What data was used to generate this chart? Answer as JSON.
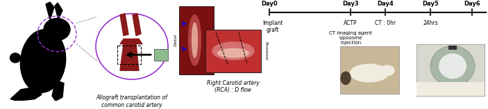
{
  "bg_color": "#ffffff",
  "timeline": {
    "days": [
      "Day0",
      "Day3",
      "Day4",
      "Day5",
      "Day6"
    ],
    "label_implant": "Implant\ngraft",
    "label_actp": "ACTP",
    "label_ct": "CT : 0hr",
    "label_24hrs": "24hrs",
    "label_ct_agent": "CT imaging agent\nLiposome\nInjection"
  },
  "caption_rabbit": "Allograft transplantation of\ncommon carotid artery",
  "caption_rca": "Right Carotid artery\n(RCA) : D flow",
  "distal_label": "Distal",
  "proximal_label": "Proximal",
  "purple_color": "#9932CC",
  "dark_red": "#8B1A1A",
  "red_mid": "#C03030",
  "green_graft": "#8FBC8F",
  "photo_dark_red": "#7B1010",
  "photo_pink": "#D4706A",
  "photo_light": "#E8A090",
  "ct_ring_color": "#A8B8A8",
  "ct_bg": "#D8DDD8",
  "rabbit_photo_bg": "#C8B898",
  "rabbit_white": "#F0EDE0"
}
